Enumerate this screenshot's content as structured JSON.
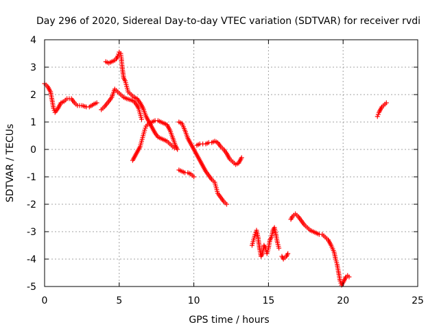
{
  "chart_data": {
    "type": "scatter",
    "title": "Day 296 of 2020, Sidereal Day-to-day VTEC variation (SDTVAR) for receiver rvdi",
    "xlabel": "GPS time / hours",
    "ylabel": "SDTVAR / TECUs",
    "xlim": [
      0,
      25
    ],
    "ylim": [
      -5,
      4
    ],
    "xticks": [
      0,
      5,
      10,
      15,
      20,
      25
    ],
    "yticks": [
      -5,
      -4,
      -3,
      -2,
      -1,
      0,
      1,
      2,
      3,
      4
    ],
    "grid": true,
    "marker": "+",
    "series_color": "#ff0000",
    "series": [
      {
        "name": "track-1",
        "points": [
          [
            0.0,
            2.4
          ],
          [
            0.2,
            2.3
          ],
          [
            0.4,
            2.1
          ],
          [
            0.5,
            1.8
          ],
          [
            0.6,
            1.5
          ],
          [
            0.7,
            1.35
          ],
          [
            0.9,
            1.5
          ],
          [
            1.1,
            1.7
          ],
          [
            1.3,
            1.75
          ],
          [
            1.5,
            1.85
          ],
          [
            1.8,
            1.85
          ],
          [
            2.0,
            1.7
          ],
          [
            2.2,
            1.6
          ],
          [
            2.5,
            1.6
          ],
          [
            2.8,
            1.55
          ],
          [
            3.0,
            1.55
          ],
          [
            3.3,
            1.65
          ],
          [
            3.5,
            1.7
          ]
        ]
      },
      {
        "name": "track-2",
        "points": [
          [
            3.8,
            1.45
          ],
          [
            4.0,
            1.55
          ],
          [
            4.3,
            1.75
          ],
          [
            4.5,
            1.9
          ],
          [
            4.7,
            2.2
          ],
          [
            4.9,
            2.1
          ],
          [
            5.1,
            2.0
          ],
          [
            5.3,
            1.9
          ],
          [
            5.5,
            1.85
          ],
          [
            5.8,
            1.8
          ],
          [
            6.0,
            1.75
          ],
          [
            6.2,
            1.6
          ],
          [
            6.3,
            1.5
          ],
          [
            6.4,
            1.3
          ],
          [
            6.5,
            1.1
          ]
        ]
      },
      {
        "name": "track-3",
        "points": [
          [
            4.1,
            3.2
          ],
          [
            4.3,
            3.15
          ],
          [
            4.5,
            3.2
          ],
          [
            4.7,
            3.25
          ],
          [
            4.8,
            3.3
          ],
          [
            4.9,
            3.4
          ],
          [
            5.0,
            3.55
          ],
          [
            5.1,
            3.5
          ],
          [
            5.15,
            3.3
          ],
          [
            5.2,
            3.0
          ],
          [
            5.3,
            2.6
          ],
          [
            5.4,
            2.5
          ],
          [
            5.5,
            2.3
          ],
          [
            5.6,
            2.1
          ],
          [
            5.8,
            2.0
          ],
          [
            6.0,
            1.9
          ],
          [
            6.2,
            1.85
          ],
          [
            6.4,
            1.7
          ],
          [
            6.6,
            1.5
          ],
          [
            6.8,
            1.2
          ],
          [
            7.0,
            1.0
          ],
          [
            7.2,
            0.8
          ],
          [
            7.4,
            0.6
          ],
          [
            7.6,
            0.45
          ],
          [
            7.8,
            0.4
          ],
          [
            8.0,
            0.35
          ],
          [
            8.2,
            0.3
          ],
          [
            8.4,
            0.2
          ],
          [
            8.6,
            0.1
          ],
          [
            8.7,
            0.05
          ]
        ]
      },
      {
        "name": "track-4",
        "points": [
          [
            5.9,
            -0.4
          ],
          [
            6.0,
            -0.3
          ],
          [
            6.1,
            -0.2
          ],
          [
            6.2,
            -0.1
          ],
          [
            6.3,
            0.0
          ],
          [
            6.4,
            0.1
          ],
          [
            6.5,
            0.3
          ],
          [
            6.6,
            0.5
          ],
          [
            6.7,
            0.7
          ],
          [
            6.8,
            0.85
          ],
          [
            7.0,
            0.95
          ],
          [
            7.2,
            1.0
          ],
          [
            7.4,
            1.05
          ],
          [
            7.6,
            1.05
          ],
          [
            7.8,
            1.0
          ],
          [
            8.0,
            0.95
          ],
          [
            8.2,
            0.9
          ],
          [
            8.4,
            0.7
          ],
          [
            8.6,
            0.4
          ],
          [
            8.8,
            0.1
          ],
          [
            8.9,
            0.0
          ]
        ]
      },
      {
        "name": "track-5",
        "points": [
          [
            9.0,
            1.0
          ],
          [
            9.2,
            0.95
          ],
          [
            9.4,
            0.7
          ],
          [
            9.6,
            0.4
          ],
          [
            9.8,
            0.2
          ],
          [
            10.0,
            0.0
          ],
          [
            10.2,
            -0.2
          ],
          [
            10.4,
            -0.4
          ],
          [
            10.6,
            -0.6
          ],
          [
            10.8,
            -0.8
          ],
          [
            11.0,
            -0.95
          ],
          [
            11.2,
            -1.1
          ],
          [
            11.4,
            -1.2
          ],
          [
            11.5,
            -1.4
          ],
          [
            11.6,
            -1.6
          ],
          [
            11.8,
            -1.75
          ],
          [
            12.0,
            -1.9
          ],
          [
            12.2,
            -2.0
          ]
        ]
      },
      {
        "name": "track-6",
        "points": [
          [
            9.0,
            -0.75
          ],
          [
            9.2,
            -0.8
          ],
          [
            9.4,
            -0.85
          ],
          [
            9.6,
            -0.85
          ],
          [
            9.8,
            -0.9
          ],
          [
            10.0,
            -1.0
          ]
        ]
      },
      {
        "name": "track-7",
        "points": [
          [
            10.2,
            0.15
          ],
          [
            10.4,
            0.2
          ],
          [
            10.6,
            0.2
          ],
          [
            10.8,
            0.2
          ],
          [
            11.0,
            0.25
          ],
          [
            11.2,
            0.25
          ],
          [
            11.4,
            0.3
          ],
          [
            11.6,
            0.25
          ],
          [
            11.8,
            0.1
          ],
          [
            12.0,
            0.0
          ],
          [
            12.2,
            -0.15
          ],
          [
            12.4,
            -0.35
          ],
          [
            12.6,
            -0.45
          ],
          [
            12.8,
            -0.55
          ],
          [
            13.0,
            -0.5
          ],
          [
            13.2,
            -0.3
          ]
        ]
      },
      {
        "name": "track-8",
        "points": [
          [
            13.9,
            -3.5
          ],
          [
            14.0,
            -3.3
          ],
          [
            14.1,
            -3.1
          ],
          [
            14.2,
            -2.95
          ],
          [
            14.3,
            -3.2
          ],
          [
            14.4,
            -3.6
          ],
          [
            14.5,
            -3.9
          ],
          [
            14.6,
            -3.8
          ],
          [
            14.7,
            -3.5
          ],
          [
            14.8,
            -3.6
          ],
          [
            14.9,
            -3.8
          ],
          [
            15.0,
            -3.6
          ],
          [
            15.1,
            -3.3
          ],
          [
            15.2,
            -3.2
          ],
          [
            15.3,
            -2.95
          ],
          [
            15.4,
            -2.85
          ],
          [
            15.5,
            -3.1
          ],
          [
            15.6,
            -3.4
          ],
          [
            15.7,
            -3.6
          ]
        ]
      },
      {
        "name": "track-9",
        "points": [
          [
            15.9,
            -3.9
          ],
          [
            16.0,
            -4.0
          ],
          [
            16.1,
            -3.95
          ],
          [
            16.2,
            -3.9
          ],
          [
            16.3,
            -3.8
          ]
        ]
      },
      {
        "name": "track-10",
        "points": [
          [
            16.5,
            -2.55
          ],
          [
            16.6,
            -2.45
          ],
          [
            16.7,
            -2.4
          ],
          [
            16.8,
            -2.35
          ],
          [
            17.0,
            -2.45
          ],
          [
            17.2,
            -2.6
          ],
          [
            17.4,
            -2.75
          ],
          [
            17.6,
            -2.85
          ],
          [
            17.8,
            -2.95
          ],
          [
            18.0,
            -3.0
          ],
          [
            18.2,
            -3.05
          ],
          [
            18.4,
            -3.1
          ],
          [
            18.6,
            -3.1
          ],
          [
            18.8,
            -3.2
          ],
          [
            19.0,
            -3.3
          ],
          [
            19.2,
            -3.5
          ],
          [
            19.4,
            -3.75
          ],
          [
            19.5,
            -4.0
          ],
          [
            19.6,
            -4.2
          ],
          [
            19.7,
            -4.5
          ],
          [
            19.8,
            -4.8
          ],
          [
            19.9,
            -4.95
          ],
          [
            20.0,
            -4.85
          ],
          [
            20.1,
            -4.75
          ],
          [
            20.2,
            -4.65
          ],
          [
            20.3,
            -4.6
          ],
          [
            20.4,
            -4.65
          ]
        ]
      },
      {
        "name": "track-11",
        "points": [
          [
            22.3,
            1.2
          ],
          [
            22.4,
            1.35
          ],
          [
            22.5,
            1.45
          ],
          [
            22.6,
            1.55
          ],
          [
            22.7,
            1.6
          ],
          [
            22.8,
            1.65
          ],
          [
            22.9,
            1.7
          ]
        ]
      }
    ]
  }
}
